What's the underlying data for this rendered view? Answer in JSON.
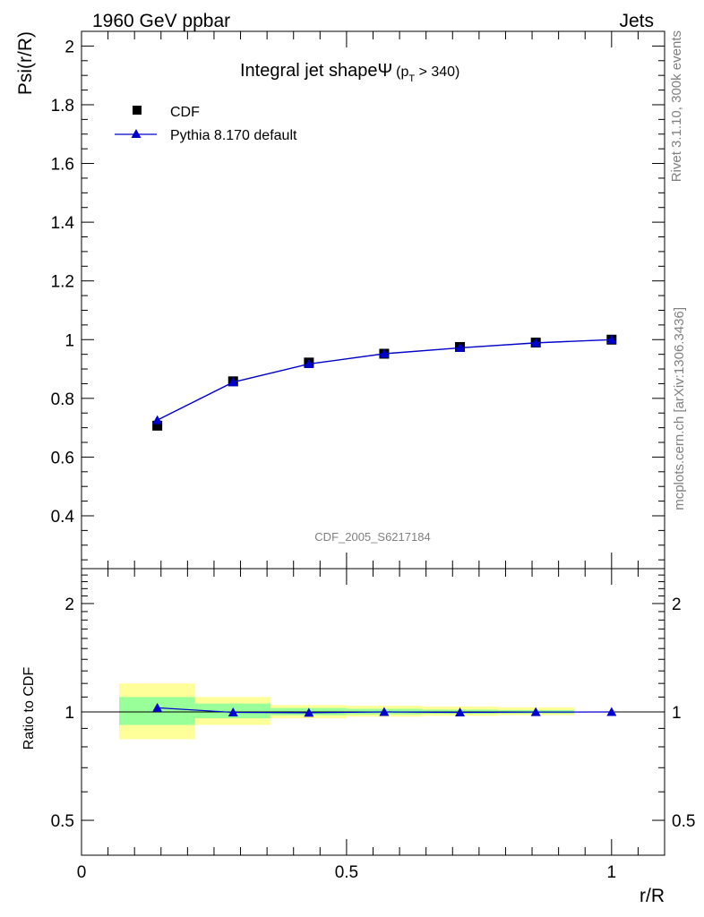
{
  "header": {
    "left": "1960 GeV ppbar",
    "right": "Jets"
  },
  "side_labels": {
    "rivet": "Rivet 3.1.10,  300k events",
    "mcplots": "mcplots.cern.ch [arXiv:1306.3436]"
  },
  "colors": {
    "data": "#000000",
    "mc": "#0000cc",
    "band_outer": "#ffff99",
    "band_inner": "#99ff99"
  },
  "chart_data": [
    {
      "type": "scatter",
      "title": "Integral jet shapeΨ",
      "title_sub": "(p",
      "title_subscript": "T",
      "title_tail": " > 340)",
      "analysis_id": "CDF_2005_S6217184",
      "xlabel": "r/R",
      "ylabel": "Psi(r/R)",
      "xlim": [
        0,
        1.1
      ],
      "ylim": [
        0.22,
        2.05
      ],
      "yticks": [
        "0.4",
        "0.6",
        "0.8",
        "1",
        "1.2",
        "1.4",
        "1.6",
        "1.8",
        "2"
      ],
      "legend_position": "top-left",
      "series": [
        {
          "name": "CDF",
          "marker": "square",
          "x": [
            0.143,
            0.286,
            0.429,
            0.571,
            0.714,
            0.857,
            1.0
          ],
          "y": [
            0.707,
            0.858,
            0.922,
            0.952,
            0.975,
            0.99,
            1.0
          ],
          "yerr": [
            0.01,
            0.006,
            0.004,
            0.003,
            0.002,
            0.002,
            0.0
          ]
        },
        {
          "name": "Pythia 8.170 default",
          "marker": "triangle",
          "x": [
            0.143,
            0.286,
            0.429,
            0.571,
            0.714,
            0.857,
            1.0
          ],
          "y": [
            0.726,
            0.855,
            0.917,
            0.952,
            0.972,
            0.989,
            1.0
          ],
          "yerr": [
            0.013,
            0.004,
            0.003,
            0.002,
            0.002,
            0.001,
            0.0
          ]
        }
      ]
    },
    {
      "type": "line",
      "xlabel": "r/R",
      "ylabel": "Ratio to CDF",
      "xlim": [
        0,
        1.1
      ],
      "ylim": [
        0.4,
        2.5
      ],
      "log_y": true,
      "xticks": [
        "0",
        "0.5",
        "1"
      ],
      "yticks": [
        "0.5",
        "1",
        "2"
      ],
      "bands": [
        {
          "x0": 0.071,
          "x1": 0.214,
          "outer": [
            0.84,
            1.2
          ],
          "inner": [
            0.92,
            1.1
          ]
        },
        {
          "x0": 0.214,
          "x1": 0.357,
          "outer": [
            0.92,
            1.1
          ],
          "inner": [
            0.96,
            1.055
          ]
        },
        {
          "x0": 0.357,
          "x1": 0.5,
          "outer": [
            0.96,
            1.045
          ],
          "inner": [
            0.98,
            1.025
          ]
        },
        {
          "x0": 0.5,
          "x1": 0.643,
          "outer": [
            0.97,
            1.04
          ],
          "inner": [
            0.985,
            1.02
          ]
        },
        {
          "x0": 0.643,
          "x1": 0.786,
          "outer": [
            0.975,
            1.035
          ],
          "inner": [
            0.988,
            1.015
          ]
        },
        {
          "x0": 0.786,
          "x1": 0.929,
          "outer": [
            0.98,
            1.03
          ],
          "inner": [
            0.99,
            1.012
          ]
        }
      ],
      "series": [
        {
          "name": "Pythia 8.170 default",
          "x": [
            0.143,
            0.286,
            0.429,
            0.571,
            0.714,
            0.857,
            1.0
          ],
          "y": [
            1.027,
            0.997,
            0.995,
            1.0,
            0.997,
            0.999,
            1.0
          ]
        }
      ]
    }
  ]
}
